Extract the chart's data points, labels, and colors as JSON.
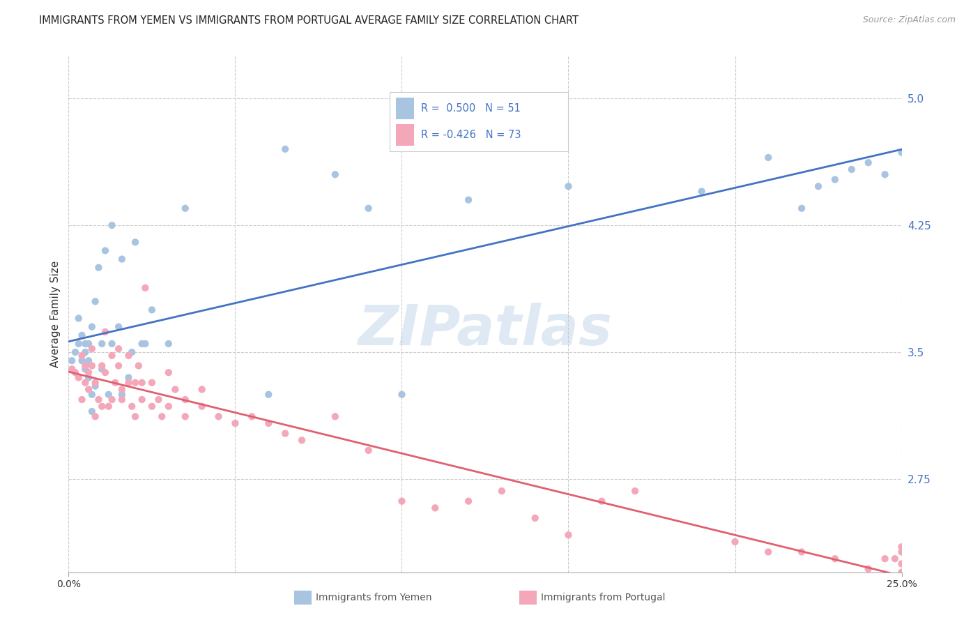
{
  "title": "IMMIGRANTS FROM YEMEN VS IMMIGRANTS FROM PORTUGAL AVERAGE FAMILY SIZE CORRELATION CHART",
  "source": "Source: ZipAtlas.com",
  "ylabel": "Average Family Size",
  "xlim": [
    0.0,
    0.25
  ],
  "ylim": [
    2.2,
    5.25
  ],
  "yticks": [
    2.75,
    3.5,
    4.25,
    5.0
  ],
  "xtick_positions": [
    0.0,
    0.25
  ],
  "xtick_labels": [
    "0.0%",
    "25.0%"
  ],
  "watermark": "ZIPatlas",
  "legend_r_yemen": "0.500",
  "legend_n_yemen": "51",
  "legend_r_portugal": "-0.426",
  "legend_n_portugal": "73",
  "color_yemen": "#a8c4e0",
  "color_portugal": "#f4a7b9",
  "line_color_yemen": "#4472c4",
  "line_color_portugal": "#e06070",
  "background_color": "#ffffff",
  "grid_color": "#cccccc",
  "yemen_scatter_x": [
    0.001,
    0.002,
    0.003,
    0.003,
    0.004,
    0.004,
    0.005,
    0.005,
    0.005,
    0.006,
    0.006,
    0.006,
    0.007,
    0.007,
    0.007,
    0.008,
    0.008,
    0.009,
    0.01,
    0.01,
    0.011,
    0.012,
    0.013,
    0.013,
    0.015,
    0.016,
    0.016,
    0.018,
    0.019,
    0.02,
    0.022,
    0.023,
    0.025,
    0.03,
    0.035,
    0.06,
    0.065,
    0.08,
    0.09,
    0.1,
    0.12,
    0.15,
    0.19,
    0.21,
    0.22,
    0.225,
    0.23,
    0.235,
    0.24,
    0.245,
    0.25
  ],
  "yemen_scatter_y": [
    3.45,
    3.5,
    3.55,
    3.7,
    3.45,
    3.6,
    3.4,
    3.5,
    3.55,
    3.35,
    3.45,
    3.55,
    3.15,
    3.25,
    3.65,
    3.3,
    3.8,
    4.0,
    3.4,
    3.55,
    4.1,
    3.25,
    3.55,
    4.25,
    3.65,
    3.25,
    4.05,
    3.35,
    3.5,
    4.15,
    3.55,
    3.55,
    3.75,
    3.55,
    4.35,
    3.25,
    4.7,
    4.55,
    4.35,
    3.25,
    4.4,
    4.48,
    4.45,
    4.65,
    4.35,
    4.48,
    4.52,
    4.58,
    4.62,
    4.55,
    4.68
  ],
  "portugal_scatter_x": [
    0.001,
    0.002,
    0.003,
    0.004,
    0.004,
    0.005,
    0.005,
    0.006,
    0.006,
    0.007,
    0.007,
    0.008,
    0.008,
    0.009,
    0.01,
    0.01,
    0.011,
    0.011,
    0.012,
    0.013,
    0.013,
    0.014,
    0.015,
    0.015,
    0.016,
    0.016,
    0.018,
    0.018,
    0.019,
    0.02,
    0.02,
    0.021,
    0.022,
    0.022,
    0.023,
    0.025,
    0.025,
    0.027,
    0.028,
    0.03,
    0.03,
    0.032,
    0.035,
    0.035,
    0.04,
    0.04,
    0.045,
    0.05,
    0.055,
    0.06,
    0.065,
    0.07,
    0.08,
    0.09,
    0.1,
    0.11,
    0.12,
    0.13,
    0.14,
    0.15,
    0.16,
    0.17,
    0.2,
    0.21,
    0.22,
    0.23,
    0.24,
    0.245,
    0.248,
    0.25,
    0.25,
    0.25,
    0.25
  ],
  "portugal_scatter_y": [
    3.4,
    3.38,
    3.35,
    3.22,
    3.48,
    3.32,
    3.42,
    3.28,
    3.38,
    3.42,
    3.52,
    3.12,
    3.32,
    3.22,
    3.18,
    3.42,
    3.62,
    3.38,
    3.18,
    3.22,
    3.48,
    3.32,
    3.42,
    3.52,
    3.28,
    3.22,
    3.32,
    3.48,
    3.18,
    3.12,
    3.32,
    3.42,
    3.22,
    3.32,
    3.88,
    3.32,
    3.18,
    3.22,
    3.12,
    3.18,
    3.38,
    3.28,
    3.12,
    3.22,
    3.28,
    3.18,
    3.12,
    3.08,
    3.12,
    3.08,
    3.02,
    2.98,
    3.12,
    2.92,
    2.62,
    2.58,
    2.62,
    2.68,
    2.52,
    2.42,
    2.62,
    2.68,
    2.38,
    2.32,
    2.32,
    2.28,
    2.22,
    2.28,
    2.28,
    2.35,
    2.32,
    2.25,
    2.2
  ]
}
